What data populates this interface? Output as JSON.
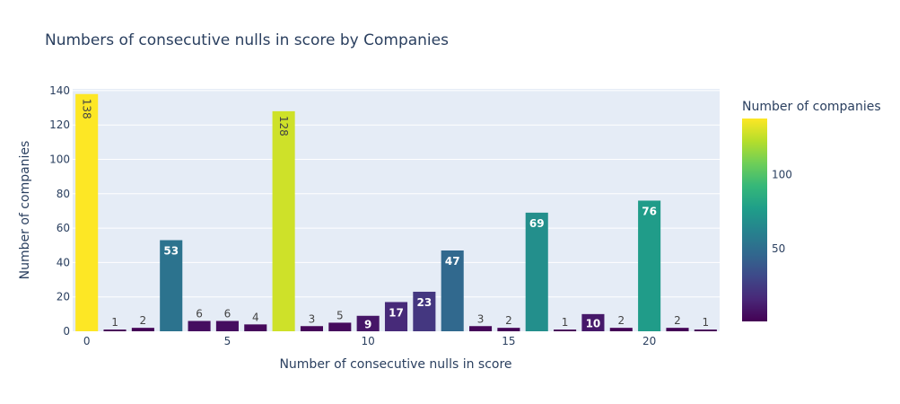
{
  "chart_data": {
    "type": "bar",
    "title": "Numbers of consecutive nulls in score by Companies",
    "xlabel": "Number of consecutive nulls in score",
    "ylabel": "Number of companies",
    "x": [
      0,
      1,
      2,
      3,
      4,
      5,
      6,
      7,
      8,
      9,
      10,
      11,
      12,
      13,
      14,
      15,
      16,
      17,
      18,
      19,
      20,
      21,
      22
    ],
    "values": [
      138,
      1,
      2,
      53,
      6,
      6,
      4,
      128,
      3,
      5,
      9,
      17,
      23,
      47,
      3,
      2,
      69,
      1,
      10,
      2,
      76,
      2,
      1
    ],
    "xlim": [
      -0.5,
      22.5
    ],
    "ylim": [
      0,
      141
    ],
    "x_ticks": [
      0,
      5,
      10,
      15,
      20
    ],
    "y_ticks": [
      0,
      20,
      40,
      60,
      80,
      100,
      120,
      140
    ],
    "grid": true,
    "colorbar": {
      "title": "Number of companies",
      "colorscale": "Viridis",
      "range": [
        1,
        138
      ],
      "ticks": [
        50,
        100
      ]
    }
  }
}
